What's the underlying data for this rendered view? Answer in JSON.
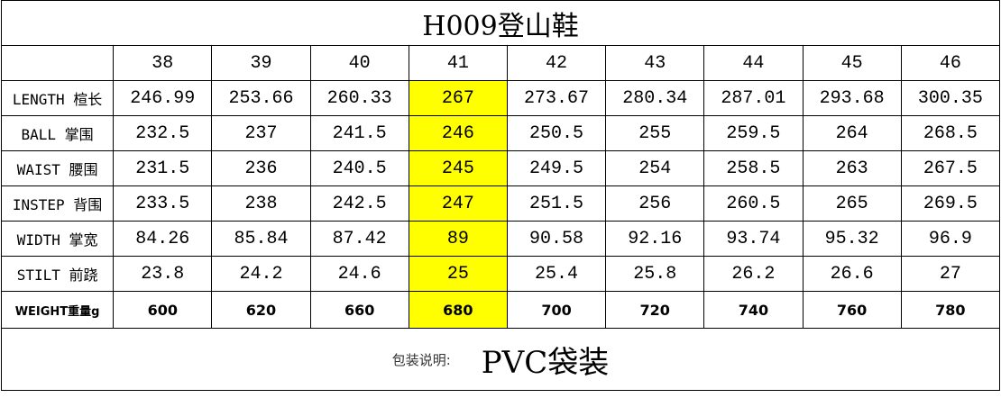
{
  "title": "H009登山鞋",
  "table": {
    "header": [
      "38",
      "39",
      "40",
      "41",
      "42",
      "43",
      "44",
      "45",
      "46"
    ],
    "rows": [
      {
        "label": "LENGTH 楦长",
        "values": [
          246.99,
          253.66,
          260.33,
          267,
          273.67,
          280.34,
          287.01,
          293.68,
          300.35
        ]
      },
      {
        "label": "BALL 掌围",
        "values": [
          232.5,
          237,
          241.5,
          246,
          250.5,
          255,
          259.5,
          264,
          268.5
        ]
      },
      {
        "label": "WAIST 腰围",
        "values": [
          231.5,
          236,
          240.5,
          245,
          249.5,
          254,
          258.5,
          263,
          267.5
        ]
      },
      {
        "label": "INSTEP 背围",
        "values": [
          233.5,
          238,
          242.5,
          247,
          251.5,
          256,
          260.5,
          265,
          269.5
        ]
      },
      {
        "label": "WIDTH 掌宽",
        "values": [
          84.26,
          85.84,
          87.42,
          89,
          90.58,
          92.16,
          93.74,
          95.32,
          96.9
        ]
      },
      {
        "label": "STILT 前跷",
        "values": [
          23.8,
          24.2,
          24.6,
          25,
          25.4,
          25.8,
          26.2,
          26.6,
          27
        ]
      },
      {
        "label": "WEIGHT重量g",
        "values": [
          600,
          620,
          660,
          680,
          700,
          720,
          740,
          760,
          780
        ]
      }
    ]
  },
  "footer": {
    "label": "包装说明:",
    "value": "PVC袋装"
  }
}
